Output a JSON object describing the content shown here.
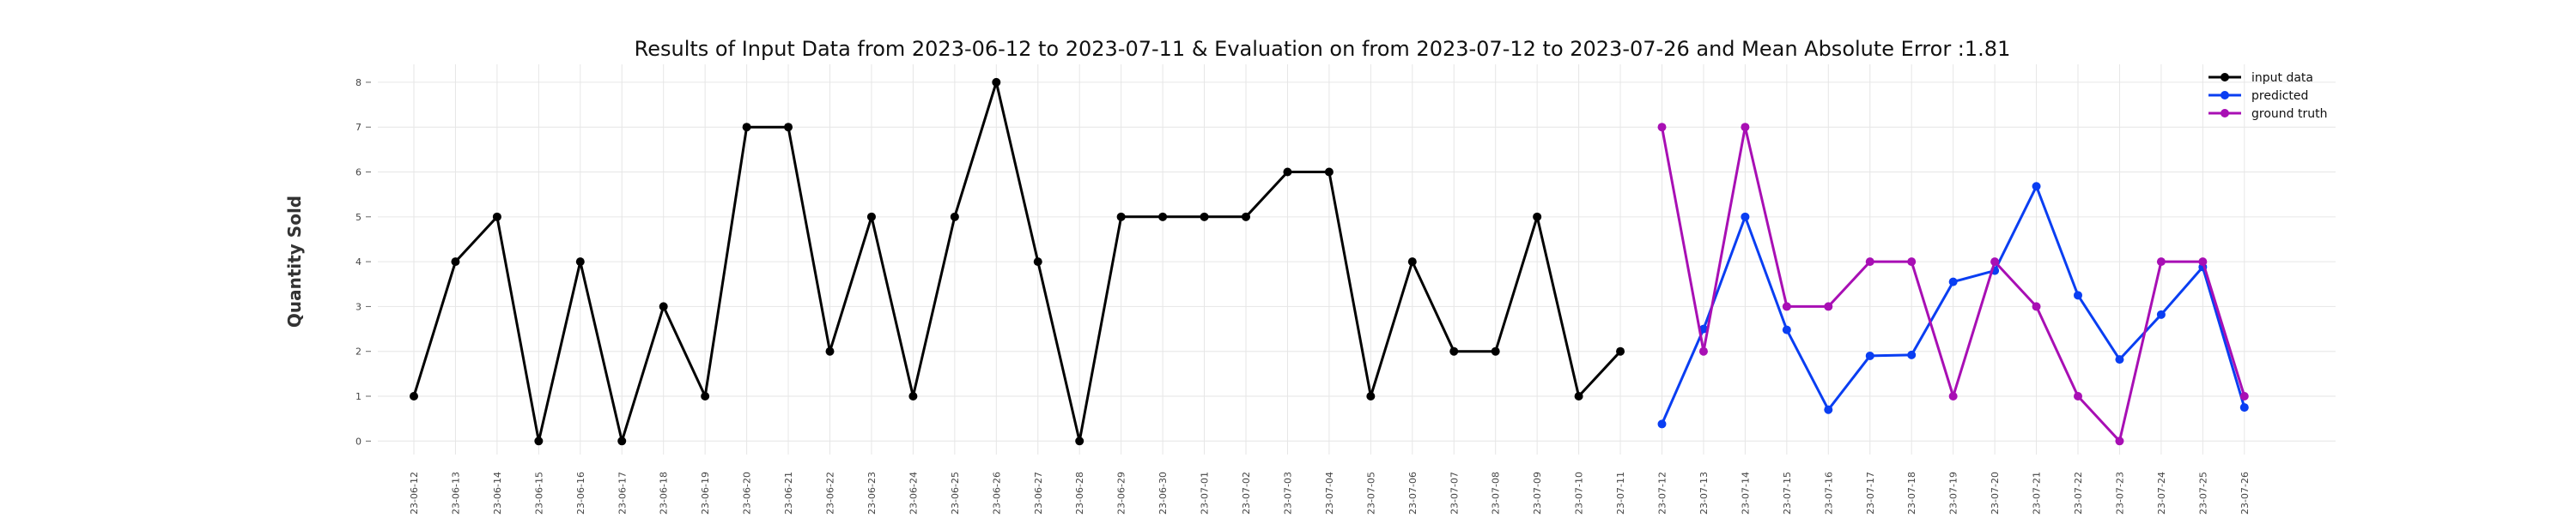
{
  "chart_data": {
    "type": "line",
    "title": "Results of Input Data from 2023-06-12 to 2023-07-11 & Evaluation on from 2023-07-12 to 2023-07-26 and Mean Absolute Error  :1.81",
    "xlabel": "",
    "ylabel": "Quantity Sold",
    "ylim": [
      -0.3,
      8.4
    ],
    "grid": true,
    "legend_position": "top-right",
    "x": [
      "2023-06-12",
      "2023-06-13",
      "2023-06-14",
      "2023-06-15",
      "2023-06-16",
      "2023-06-17",
      "2023-06-18",
      "2023-06-19",
      "2023-06-20",
      "2023-06-21",
      "2023-06-22",
      "2023-06-23",
      "2023-06-24",
      "2023-06-25",
      "2023-06-26",
      "2023-06-27",
      "2023-06-28",
      "2023-06-29",
      "2023-06-30",
      "2023-07-01",
      "2023-07-02",
      "2023-07-03",
      "2023-07-04",
      "2023-07-05",
      "2023-07-06",
      "2023-07-07",
      "2023-07-08",
      "2023-07-09",
      "2023-07-10",
      "2023-07-11",
      "2023-07-12",
      "2023-07-13",
      "2023-07-14",
      "2023-07-15",
      "2023-07-16",
      "2023-07-17",
      "2023-07-18",
      "2023-07-19",
      "2023-07-20",
      "2023-07-21",
      "2023-07-22",
      "2023-07-23",
      "2023-07-24",
      "2023-07-25",
      "2023-07-26"
    ],
    "x_tick_labels": [
      "-23-06-12",
      "-23-06-13",
      "-23-06-14",
      "-23-06-15",
      "-23-06-16",
      "-23-06-17",
      "-23-06-18",
      "-23-06-19",
      "-23-06-20",
      "-23-06-21",
      "-23-06-22",
      "-23-06-23",
      "-23-06-24",
      "-23-06-25",
      "-23-06-26",
      "-23-06-27",
      "-23-06-28",
      "-23-06-29",
      "-23-06-30",
      "-23-07-01",
      "-23-07-02",
      "-23-07-03",
      "-23-07-04",
      "-23-07-05",
      "-23-07-06",
      "-23-07-07",
      "-23-07-08",
      "-23-07-09",
      "-23-07-10",
      "-23-07-11",
      "-23-07-12",
      "-23-07-13",
      "-23-07-14",
      "-23-07-15",
      "-23-07-16",
      "-23-07-17",
      "-23-07-18",
      "-23-07-19",
      "-23-07-20",
      "-23-07-21",
      "-23-07-22",
      "-23-07-23",
      "-23-07-24",
      "-23-07-25",
      "-23-07-26"
    ],
    "y_ticks": [
      0,
      1,
      2,
      3,
      4,
      5,
      6,
      7,
      8
    ],
    "series": [
      {
        "name": "input data",
        "color": "#000000",
        "x": [
          "2023-06-12",
          "2023-06-13",
          "2023-06-14",
          "2023-06-15",
          "2023-06-16",
          "2023-06-17",
          "2023-06-18",
          "2023-06-19",
          "2023-06-20",
          "2023-06-21",
          "2023-06-22",
          "2023-06-23",
          "2023-06-24",
          "2023-06-25",
          "2023-06-26",
          "2023-06-27",
          "2023-06-28",
          "2023-06-29",
          "2023-06-30",
          "2023-07-01",
          "2023-07-02",
          "2023-07-03",
          "2023-07-04",
          "2023-07-05",
          "2023-07-06",
          "2023-07-07",
          "2023-07-08",
          "2023-07-09",
          "2023-07-10",
          "2023-07-11"
        ],
        "values": [
          1,
          4,
          5,
          0,
          4,
          0,
          3,
          1,
          7,
          7,
          2,
          5,
          1,
          5,
          8,
          4,
          0,
          5,
          5,
          5,
          5,
          6,
          6,
          1,
          4,
          2,
          2,
          5,
          1,
          2
        ]
      },
      {
        "name": "predicted",
        "color": "#0a3ef2",
        "x": [
          "2023-07-12",
          "2023-07-13",
          "2023-07-14",
          "2023-07-15",
          "2023-07-16",
          "2023-07-17",
          "2023-07-18",
          "2023-07-19",
          "2023-07-20",
          "2023-07-21",
          "2023-07-22",
          "2023-07-23",
          "2023-07-24",
          "2023-07-25",
          "2023-07-26"
        ],
        "values": [
          0.38,
          2.5,
          5.0,
          2.48,
          0.7,
          1.9,
          1.92,
          3.55,
          3.8,
          5.68,
          3.25,
          1.82,
          2.82,
          3.88,
          0.75
        ]
      },
      {
        "name": "ground truth",
        "color": "#a80fb4",
        "x": [
          "2023-07-12",
          "2023-07-13",
          "2023-07-14",
          "2023-07-15",
          "2023-07-16",
          "2023-07-17",
          "2023-07-18",
          "2023-07-19",
          "2023-07-20",
          "2023-07-21",
          "2023-07-22",
          "2023-07-23",
          "2023-07-24",
          "2023-07-25",
          "2023-07-26"
        ],
        "values": [
          7,
          2,
          7,
          3,
          3,
          4,
          4,
          1,
          4,
          3,
          1,
          0,
          4,
          4,
          1
        ]
      }
    ]
  }
}
